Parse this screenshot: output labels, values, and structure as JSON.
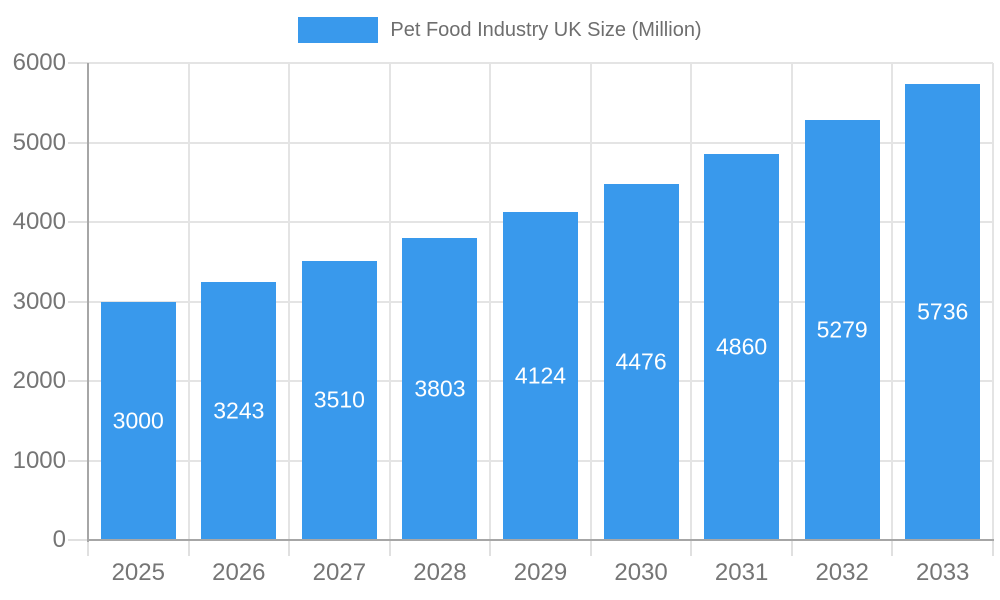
{
  "legend": {
    "label": "Pet Food Industry UK Size (Million)"
  },
  "chart_data": {
    "type": "bar",
    "title": "",
    "xlabel": "",
    "ylabel": "",
    "categories": [
      "2025",
      "2026",
      "2027",
      "2028",
      "2029",
      "2030",
      "2031",
      "2032",
      "2033"
    ],
    "values": [
      3000,
      3243,
      3510,
      3803,
      4124,
      4476,
      4860,
      5279,
      5736
    ],
    "series_name": "Pet Food Industry UK Size (Million)",
    "ylim": [
      0,
      6000
    ],
    "yticks": [
      0,
      1000,
      2000,
      3000,
      4000,
      5000,
      6000
    ],
    "grid": true,
    "legend_position": "top-center",
    "value_labels": "inside-center"
  },
  "colors": {
    "bar": "#3999EC",
    "grid": "#e4e4e4",
    "tick": "#e0e0e0",
    "axis": "#a6a6a6",
    "axis_text": "#757575",
    "legend_text": "#6e6e6e",
    "value_text": "#ffffff",
    "background": "#ffffff"
  }
}
